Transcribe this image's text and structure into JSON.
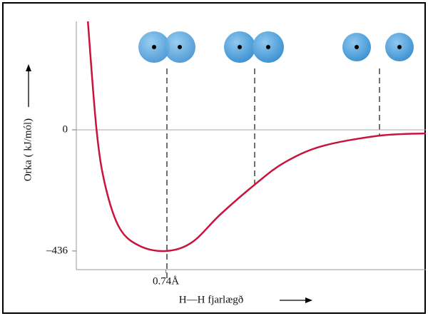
{
  "chart_data": {
    "type": "line",
    "y_label": "Orka ( kJ/mól)",
    "x_label": "H—H fjarlægð",
    "x": [
      0.47,
      0.5,
      0.53,
      0.58,
      0.65,
      0.74,
      0.83,
      0.93,
      1.05,
      1.15,
      1.28,
      1.48,
      1.64
    ],
    "series": [
      {
        "color": "#c8143c",
        "values": [
          390,
          0,
          -200,
          -354,
          -418,
          -436,
          -405,
          -303,
          -195,
          -118,
          -59,
          -21,
          -13
        ]
      }
    ],
    "xlim": [
      0.43,
      1.64
    ],
    "ylim": [
      -503,
      390
    ],
    "xticks": [
      {
        "value": 0.74,
        "label": "0.74Å"
      }
    ],
    "yticks": [
      {
        "value": 0,
        "label": "0"
      },
      {
        "value": -436,
        "label": "–436"
      }
    ],
    "zero_line": true
  }
}
